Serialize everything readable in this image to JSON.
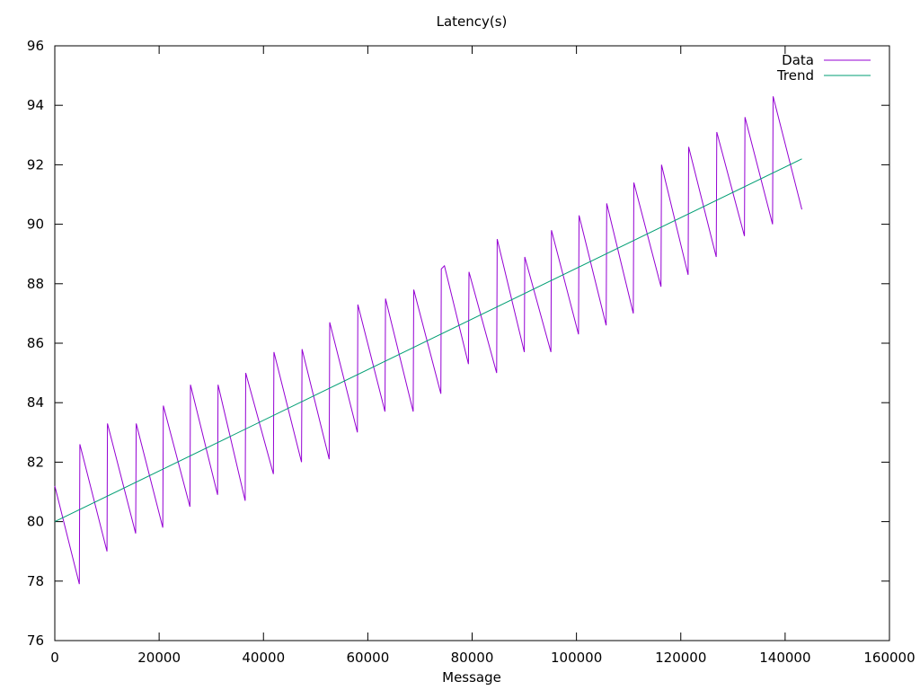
{
  "chart_data": {
    "type": "line",
    "title": "Latency(s)",
    "xlabel": "Message",
    "ylabel": "",
    "xlim": [
      0,
      160000
    ],
    "ylim": [
      76,
      96
    ],
    "xticks": [
      0,
      20000,
      40000,
      60000,
      80000,
      100000,
      120000,
      140000,
      160000
    ],
    "yticks": [
      76,
      78,
      80,
      82,
      84,
      86,
      88,
      90,
      92,
      94,
      96
    ],
    "grid": false,
    "legend_position": "top-right",
    "series": [
      {
        "name": "Data",
        "color": "#9400d3",
        "points": [
          [
            0,
            81.2
          ],
          [
            4700,
            77.9
          ],
          [
            4800,
            82.6
          ],
          [
            10000,
            79.0
          ],
          [
            10100,
            83.3
          ],
          [
            15500,
            79.6
          ],
          [
            15600,
            83.3
          ],
          [
            20700,
            79.8
          ],
          [
            20800,
            83.9
          ],
          [
            25900,
            80.5
          ],
          [
            26000,
            84.6
          ],
          [
            31200,
            80.9
          ],
          [
            31300,
            84.6
          ],
          [
            36500,
            80.7
          ],
          [
            36600,
            85.0
          ],
          [
            41900,
            81.6
          ],
          [
            42000,
            85.7
          ],
          [
            47300,
            82.0
          ],
          [
            47400,
            85.8
          ],
          [
            52600,
            82.1
          ],
          [
            52700,
            86.7
          ],
          [
            58000,
            83.0
          ],
          [
            58100,
            87.3
          ],
          [
            63300,
            83.7
          ],
          [
            63400,
            87.5
          ],
          [
            68700,
            83.7
          ],
          [
            68800,
            87.8
          ],
          [
            74000,
            84.3
          ],
          [
            74100,
            88.5
          ],
          [
            74700,
            88.6
          ],
          [
            79300,
            85.3
          ],
          [
            79400,
            88.4
          ],
          [
            84700,
            85.0
          ],
          [
            84800,
            89.5
          ],
          [
            90000,
            85.7
          ],
          [
            90100,
            88.9
          ],
          [
            95100,
            85.7
          ],
          [
            95200,
            89.8
          ],
          [
            100400,
            86.3
          ],
          [
            100500,
            90.3
          ],
          [
            105700,
            86.6
          ],
          [
            105800,
            90.7
          ],
          [
            110900,
            87.0
          ],
          [
            111000,
            91.4
          ],
          [
            116200,
            87.9
          ],
          [
            116300,
            92.0
          ],
          [
            121400,
            88.3
          ],
          [
            121500,
            92.6
          ],
          [
            126800,
            88.9
          ],
          [
            126900,
            93.1
          ],
          [
            132200,
            89.6
          ],
          [
            132300,
            93.6
          ],
          [
            137600,
            90.0
          ],
          [
            137700,
            94.3
          ],
          [
            143200,
            90.5
          ]
        ]
      },
      {
        "name": "Trend",
        "color": "#009e73",
        "points": [
          [
            0,
            80.0
          ],
          [
            143200,
            92.2
          ]
        ]
      }
    ]
  }
}
